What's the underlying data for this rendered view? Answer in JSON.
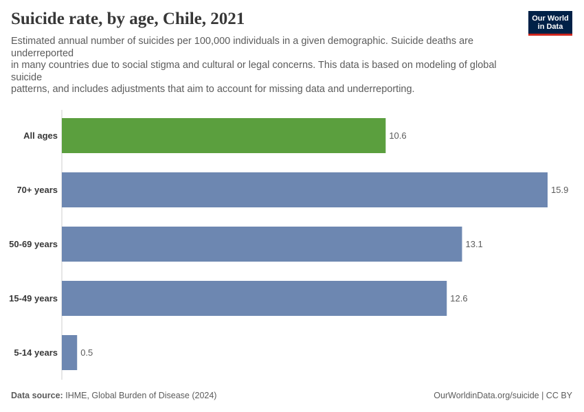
{
  "chart_data": {
    "type": "bar",
    "orientation": "horizontal",
    "title": "Suicide rate, by age, Chile, 2021",
    "subtitle_lines": [
      "Estimated annual number of suicides per 100,000 individuals in a given demographic. Suicide deaths are underreported",
      "in many countries due to social stigma and cultural or legal concerns. This data is based on modeling of global suicide",
      "patterns, and includes adjustments that aim to account for missing data and underreporting."
    ],
    "categories": [
      "All ages",
      "70+ years",
      "50-69 years",
      "15-49 years",
      "5-14 years"
    ],
    "values": [
      10.6,
      15.9,
      13.1,
      12.6,
      0.5
    ],
    "value_labels": [
      "10.6",
      "15.9",
      "13.1",
      "12.6",
      "0.5"
    ],
    "highlight_category": "All ages",
    "colors": {
      "highlight": "#5b9f3e",
      "default": "#6d87b1",
      "axis": "#cccccc",
      "label": "#373737",
      "value": "#5b5b5b"
    },
    "xlim": [
      0,
      15.9
    ],
    "grid": false,
    "legend": "none"
  },
  "logo": {
    "line1": "Our World",
    "line2": "in Data"
  },
  "footer": {
    "source_label": "Data source:",
    "source_text": "IHME, Global Burden of Disease (2024)",
    "credit": "OurWorldinData.org/suicide | CC BY"
  }
}
